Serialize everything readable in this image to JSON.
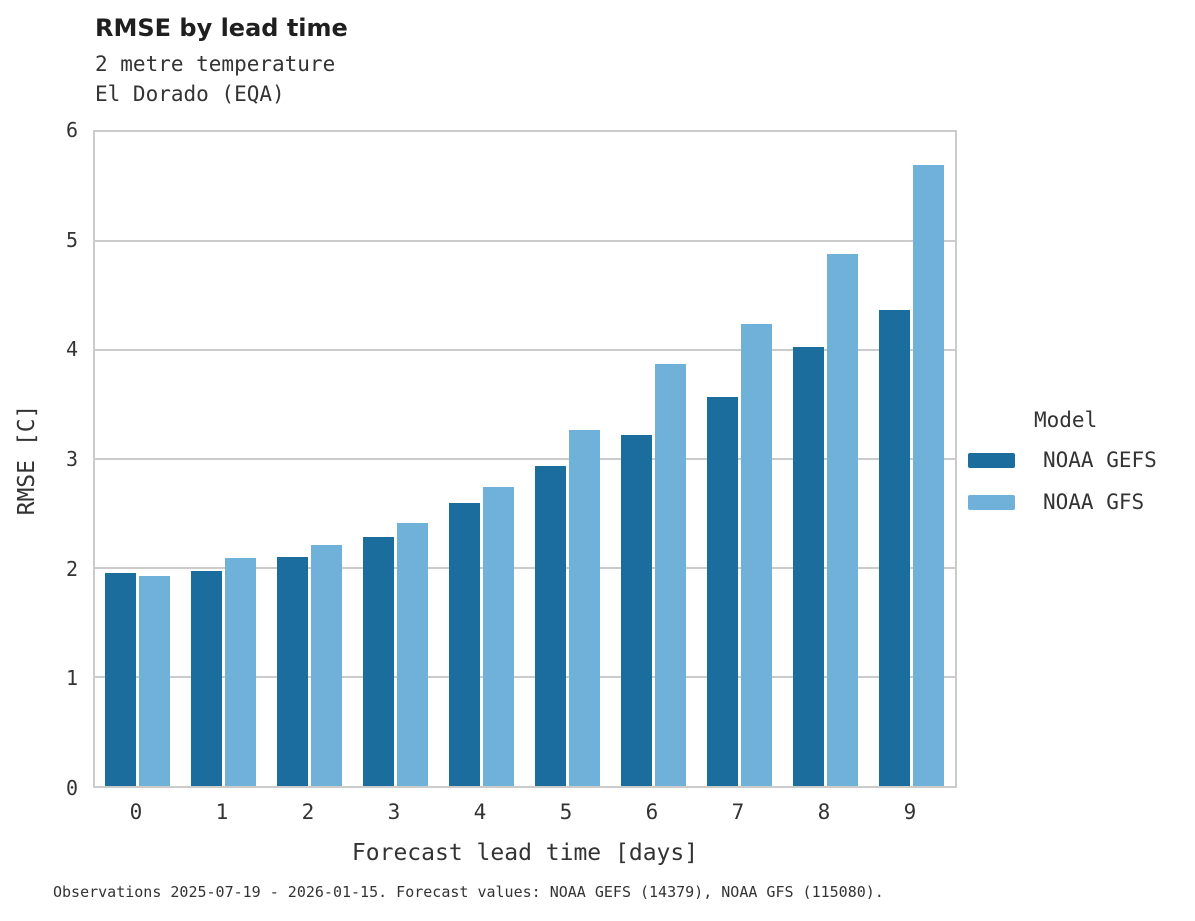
{
  "header": {
    "title": "RMSE by lead time",
    "subtitle_line1": "2 metre temperature",
    "subtitle_line2": "El Dorado (EQA)"
  },
  "legend": {
    "title": "Model",
    "items": [
      {
        "label": "NOAA GEFS",
        "color": "#1A6D9C"
      },
      {
        "label": "NOAA GFS",
        "color": "#70B1D9"
      }
    ]
  },
  "caption": "Observations 2025-07-19 - 2026-01-15. Forecast values: NOAA GEFS (14379), NOAA GFS (115080).",
  "chart_data": {
    "type": "bar",
    "title": "RMSE by lead time",
    "subtitle": [
      "2 metre temperature",
      "El Dorado (EQA)"
    ],
    "categories": [
      "0",
      "1",
      "2",
      "3",
      "4",
      "5",
      "6",
      "7",
      "8",
      "9"
    ],
    "series": [
      {
        "name": "NOAA GEFS",
        "color": "#1A6D9C",
        "values": [
          1.95,
          1.97,
          2.1,
          2.28,
          2.6,
          2.94,
          3.22,
          3.57,
          4.03,
          4.37
        ]
      },
      {
        "name": "NOAA GFS",
        "color": "#70B1D9",
        "values": [
          1.93,
          2.09,
          2.21,
          2.41,
          2.74,
          3.27,
          3.87,
          4.24,
          4.88,
          5.7
        ]
      }
    ],
    "xlabel": "Forecast lead time [days]",
    "ylabel": "RMSE [C]",
    "ylim": [
      0,
      6
    ],
    "yticks": [
      0,
      1,
      2,
      3,
      4,
      5,
      6
    ],
    "grid": "horizontal",
    "legend_title": "Model",
    "legend_position": "right",
    "bar_colors": {
      "dark": "#1A6D9C",
      "light": "#70B1D9"
    },
    "gridline_color": "#CBCBCB"
  }
}
